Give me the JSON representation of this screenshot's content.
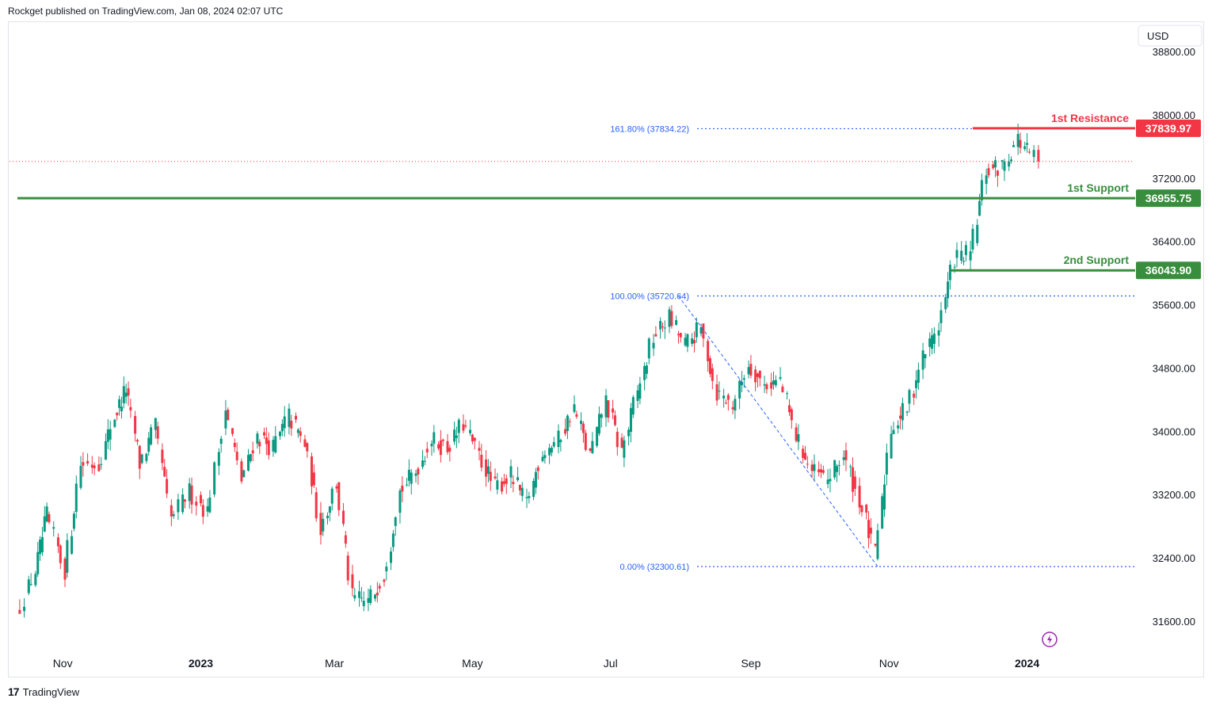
{
  "header": {
    "published": "Rockget published on TradingView.com, Jan 08, 2024 02:07 UTC"
  },
  "footer": {
    "brand": "TradingView",
    "logo_icon": "tradingview-logo-icon"
  },
  "colors": {
    "up": "#089981",
    "down": "#f23645",
    "support": "#388e3c",
    "resistance": "#f23645",
    "fib": "#2962ff",
    "grid_text": "#131722"
  },
  "chart_data": {
    "type": "candlestick",
    "currency": "USD",
    "y_ticks": [
      "38800.00",
      "38000.00",
      "37200.00",
      "36400.00",
      "35600.00",
      "34800.00",
      "34000.00",
      "33200.00",
      "32400.00",
      "31600.00"
    ],
    "y_tick_values": [
      38800,
      38000,
      37200,
      36400,
      35600,
      34800,
      34000,
      33200,
      32400,
      31600
    ],
    "ylim": [
      31250,
      39250
    ],
    "x_ticks": [
      {
        "label": "Nov",
        "bold": false,
        "date": "2022-11-01"
      },
      {
        "label": "2023",
        "bold": true,
        "date": "2023-01-01"
      },
      {
        "label": "Mar",
        "bold": false,
        "date": "2023-03-01"
      },
      {
        "label": "May",
        "bold": false,
        "date": "2023-05-01"
      },
      {
        "label": "Jul",
        "bold": false,
        "date": "2023-07-01"
      },
      {
        "label": "Sep",
        "bold": false,
        "date": "2023-09-01"
      },
      {
        "label": "Nov",
        "bold": false,
        "date": "2023-11-01"
      },
      {
        "label": "2024",
        "bold": true,
        "date": "2024-01-01"
      }
    ],
    "levels": [
      {
        "label": "1st Resistance",
        "value": "37839.97",
        "y": 37839.97,
        "kind": "resistance",
        "from_date": "2023-12-08"
      },
      {
        "label": "1st Support",
        "value": "36955.75",
        "y": 36955.75,
        "kind": "support",
        "from_date": "2022-10-12"
      },
      {
        "label": "2nd Support",
        "value": "36043.90",
        "y": 36043.9,
        "kind": "support",
        "from_date": "2023-11-28"
      }
    ],
    "fibonacci": [
      {
        "label": "161.80% (37834.22)",
        "y": 37834.22
      },
      {
        "label": "100.00% (35720.64)",
        "y": 35720.64
      },
      {
        "label": "0.00% (32300.61)",
        "y": 32300.61
      }
    ],
    "fib_anchor_high": {
      "date": "2023-07-31",
      "y": 35720.64
    },
    "fib_anchor_low": {
      "date": "2023-10-27",
      "y": 32300.61
    },
    "last_price": 37420,
    "series": [
      {
        "date": "2022-10-13",
        "close": 31700
      },
      {
        "date": "2022-10-21",
        "close": 32250
      },
      {
        "date": "2022-10-26",
        "close": 32950
      },
      {
        "date": "2022-11-03",
        "close": 32250
      },
      {
        "date": "2022-11-10",
        "close": 33600
      },
      {
        "date": "2022-11-18",
        "close": 33600
      },
      {
        "date": "2022-11-25",
        "close": 34200
      },
      {
        "date": "2022-11-30",
        "close": 34550
      },
      {
        "date": "2022-12-06",
        "close": 33600
      },
      {
        "date": "2022-12-13",
        "close": 34050
      },
      {
        "date": "2022-12-20",
        "close": 32900
      },
      {
        "date": "2022-12-28",
        "close": 33250
      },
      {
        "date": "2023-01-05",
        "close": 33000
      },
      {
        "date": "2023-01-13",
        "close": 34300
      },
      {
        "date": "2023-01-20",
        "close": 33400
      },
      {
        "date": "2023-01-27",
        "close": 33950
      },
      {
        "date": "2023-02-03",
        "close": 33800
      },
      {
        "date": "2023-02-10",
        "close": 34200
      },
      {
        "date": "2023-02-17",
        "close": 33850
      },
      {
        "date": "2023-02-24",
        "close": 32800
      },
      {
        "date": "2023-03-03",
        "close": 33350
      },
      {
        "date": "2023-03-10",
        "close": 31900
      },
      {
        "date": "2023-03-17",
        "close": 31850
      },
      {
        "date": "2023-03-24",
        "close": 32200
      },
      {
        "date": "2023-03-31",
        "close": 33250
      },
      {
        "date": "2023-04-07",
        "close": 33500
      },
      {
        "date": "2023-04-14",
        "close": 33900
      },
      {
        "date": "2023-04-21",
        "close": 33800
      },
      {
        "date": "2023-04-28",
        "close": 34100
      },
      {
        "date": "2023-05-05",
        "close": 33700
      },
      {
        "date": "2023-05-12",
        "close": 33300
      },
      {
        "date": "2023-05-19",
        "close": 33450
      },
      {
        "date": "2023-05-26",
        "close": 33100
      },
      {
        "date": "2023-06-02",
        "close": 33750
      },
      {
        "date": "2023-06-09",
        "close": 33900
      },
      {
        "date": "2023-06-16",
        "close": 34300
      },
      {
        "date": "2023-06-23",
        "close": 33700
      },
      {
        "date": "2023-06-30",
        "close": 34400
      },
      {
        "date": "2023-07-07",
        "close": 33750
      },
      {
        "date": "2023-07-14",
        "close": 34500
      },
      {
        "date": "2023-07-21",
        "close": 35200
      },
      {
        "date": "2023-07-28",
        "close": 35450
      },
      {
        "date": "2023-08-04",
        "close": 35100
      },
      {
        "date": "2023-08-11",
        "close": 35300
      },
      {
        "date": "2023-08-18",
        "close": 34500
      },
      {
        "date": "2023-08-25",
        "close": 34350
      },
      {
        "date": "2023-09-01",
        "close": 34850
      },
      {
        "date": "2023-09-08",
        "close": 34600
      },
      {
        "date": "2023-09-15",
        "close": 34650
      },
      {
        "date": "2023-09-22",
        "close": 33950
      },
      {
        "date": "2023-09-29",
        "close": 33500
      },
      {
        "date": "2023-10-06",
        "close": 33400
      },
      {
        "date": "2023-10-13",
        "close": 33700
      },
      {
        "date": "2023-10-20",
        "close": 33150
      },
      {
        "date": "2023-10-27",
        "close": 32450
      },
      {
        "date": "2023-11-03",
        "close": 34050
      },
      {
        "date": "2023-11-10",
        "close": 34300
      },
      {
        "date": "2023-11-17",
        "close": 34950
      },
      {
        "date": "2023-11-24",
        "close": 35350
      },
      {
        "date": "2023-12-01",
        "close": 36200
      },
      {
        "date": "2023-12-08",
        "close": 36250
      },
      {
        "date": "2023-12-15",
        "close": 37300
      },
      {
        "date": "2023-12-22",
        "close": 37350
      },
      {
        "date": "2023-12-29",
        "close": 37700
      },
      {
        "date": "2024-01-05",
        "close": 37450
      }
    ]
  }
}
